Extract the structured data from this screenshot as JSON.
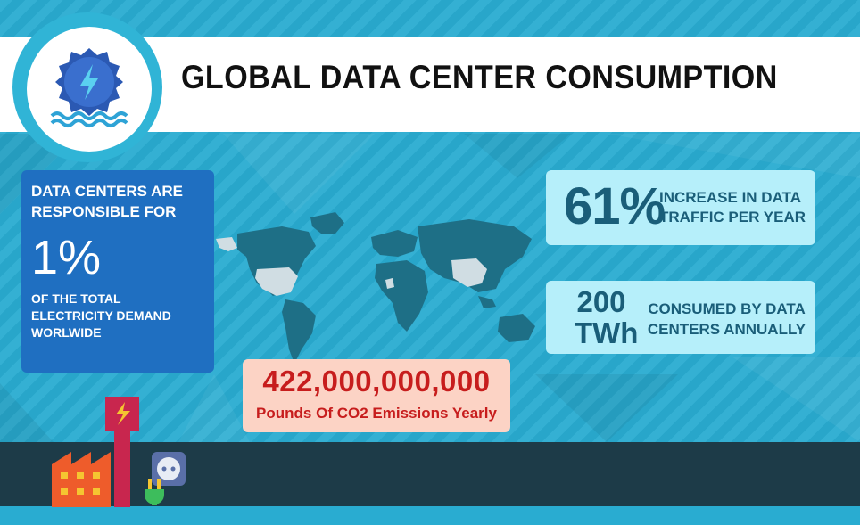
{
  "header": {
    "title": "GLOBAL DATA CENTER CONSUMPTION"
  },
  "stat_electricity": {
    "lead": "DATA CENTERS ARE RESPONSIBLE FOR",
    "value": "1%",
    "tail": "OF THE TOTAL ELECTRICITY DEMAND WORLWIDE"
  },
  "stat_traffic": {
    "value": "61%",
    "text": "INCREASE IN DATA TRAFFIC PER YEAR"
  },
  "stat_consumption": {
    "value": "200 TWh",
    "text": "CONSUMED BY DATA CENTERS ANNUALLY"
  },
  "stat_emissions": {
    "value": "422,000,000,000",
    "text": "Pounds Of CO2 Emissions Yearly"
  },
  "icons": {
    "logo": "hydro-power-icon",
    "factory": "factory-icon",
    "plug": "plug-socket-icon"
  },
  "colors": {
    "background": "#29acd1",
    "left_card": "#1f6fc1",
    "right_cards": "#b6effa",
    "emissions_card": "#fcd3c5",
    "emissions_text": "#c71d1d",
    "bottom_band": "#1d3b48",
    "map_dark": "#1e6f86",
    "map_highlight": "#d0dde3"
  }
}
